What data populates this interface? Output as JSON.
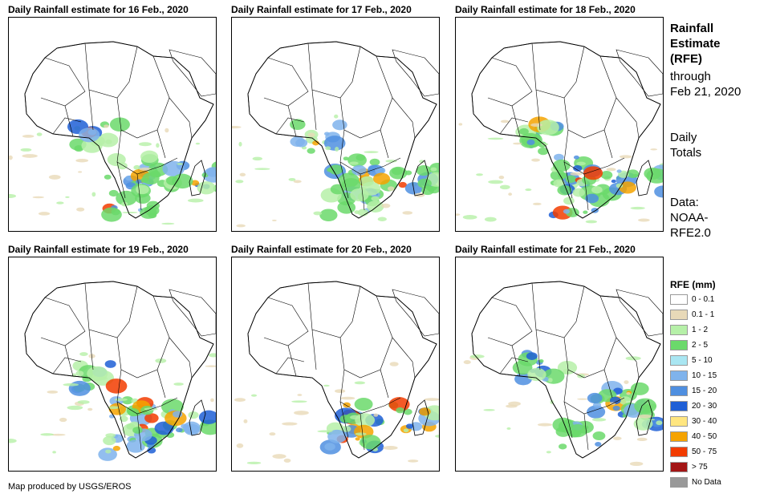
{
  "panels": [
    {
      "title": "Daily Rainfall estimate for 16 Feb., 2020",
      "day": 16
    },
    {
      "title": "Daily Rainfall estimate for 17 Feb., 2020",
      "day": 17
    },
    {
      "title": "Daily Rainfall estimate for 18 Feb., 2020",
      "day": 18
    },
    {
      "title": "Daily Rainfall estimate for 19 Feb., 2020",
      "day": 19
    },
    {
      "title": "Daily Rainfall estimate for 20 Feb., 2020",
      "day": 20
    },
    {
      "title": "Daily Rainfall estimate for 21 Feb., 2020",
      "day": 21
    }
  ],
  "side": {
    "title_line1": "Rainfall",
    "title_line2": "Estimate",
    "title_line3": "(RFE)",
    "through_line1": "through",
    "through_line2": "Feb 21, 2020",
    "daily_line1": "Daily",
    "daily_line2": "Totals",
    "data_line1": "Data:",
    "data_line2": "NOAA-",
    "data_line3": "RFE2.0"
  },
  "legend": {
    "title": "RFE (mm)",
    "items": [
      {
        "label": "0 - 0.1",
        "color": "#ffffff"
      },
      {
        "label": "0.1 - 1",
        "color": "#e8d9b8"
      },
      {
        "label": "1 - 2",
        "color": "#b6f0a8"
      },
      {
        "label": "2 - 5",
        "color": "#6bd96b"
      },
      {
        "label": "5 - 10",
        "color": "#a9e6f2"
      },
      {
        "label": "10 - 15",
        "color": "#7fb3ec"
      },
      {
        "label": "15 - 20",
        "color": "#4f8fe0"
      },
      {
        "label": "20 - 30",
        "color": "#1f5fd6"
      },
      {
        "label": "30 - 40",
        "color": "#ffe680"
      },
      {
        "label": "40 - 50",
        "color": "#f5a300"
      },
      {
        "label": "50 - 75",
        "color": "#f23c00"
      },
      {
        "label": "> 75",
        "color": "#a31515"
      },
      {
        "label": "No Data",
        "color": "#999999"
      }
    ]
  },
  "credit": "Map produced by USGS/EROS"
}
